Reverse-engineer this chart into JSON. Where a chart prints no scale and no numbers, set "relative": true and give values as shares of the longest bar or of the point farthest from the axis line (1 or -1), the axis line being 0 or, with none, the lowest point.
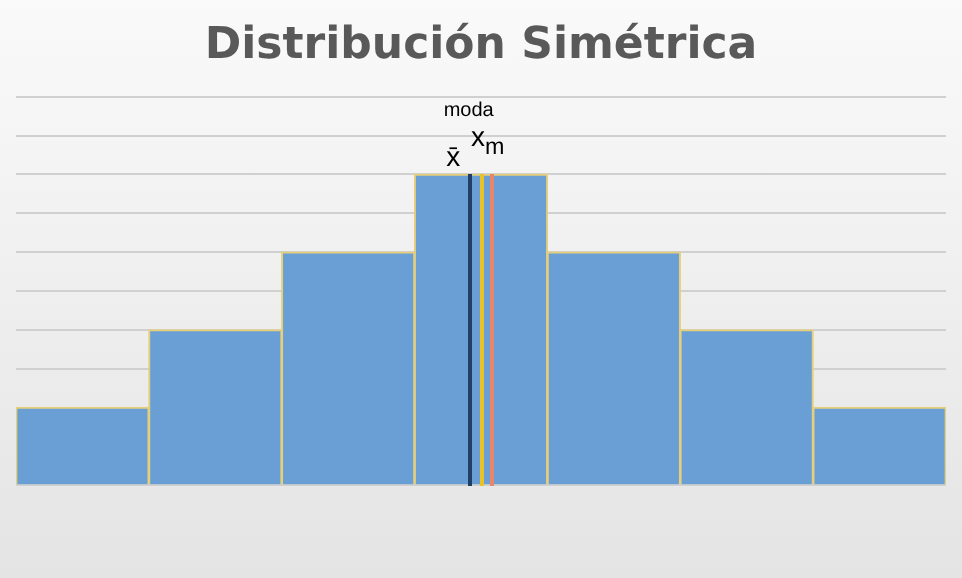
{
  "chart_data": {
    "type": "bar",
    "title": "Distribución Simétrica",
    "relative": true,
    "grid": "y",
    "color": "#6a9fd6",
    "categories": [
      null,
      null,
      null,
      null,
      null,
      null,
      null
    ],
    "values": [
      0.25,
      0.5,
      0.75,
      1,
      0.75,
      0.5,
      0.25
    ],
    "annotations": [
      "x̄",
      "x$_{m}$",
      "moda"
    ]
  }
}
